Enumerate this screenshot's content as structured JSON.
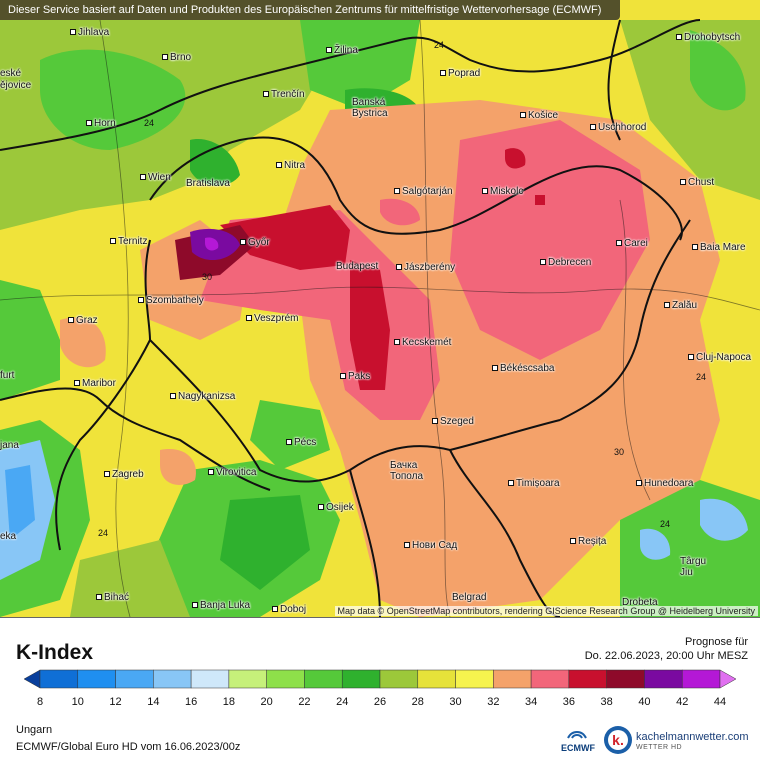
{
  "header": {
    "disclaimer": "Dieser Service basiert auf Daten und Produkten des Europäischen Zentrums für mittelfristige Wettervorhersage (ECMWF)"
  },
  "map": {
    "attribution": "Map data © OpenStreetMap contributors, rendering GIScience Research Group @ Heidelberg University",
    "cities": [
      "Jihlava",
      "Brno",
      "Žilina",
      "Poprad",
      "Drohobytsch",
      "Banská Bystrica",
      "Trenčín",
      "Horn",
      "Košice",
      "Uschhorod",
      "Nitra",
      "Wien",
      "Bratislava",
      "Salgótarján",
      "Miskolc",
      "Chust",
      "Ternitz",
      "Győr",
      "Budapest",
      "Jászberény",
      "Debrecen",
      "Carei",
      "Baia Mare",
      "Szombathely",
      "Graz",
      "Veszprém",
      "Kecskemét",
      "Zalău",
      "Maribor",
      "Paks",
      "Békéscsaba",
      "Cluj-Napoca",
      "Nagykanizsa",
      "Szeged",
      "Pécs",
      "Zagreb",
      "Virovitica",
      "Бачка Топола",
      "Timișoara",
      "Hunedoara",
      "Osijek",
      "Нови Сад",
      "Reșița",
      "Târgu Jiu",
      "Bihać",
      "Banja Luka",
      "Doboj",
      "Belgrad",
      "Drobeta",
      "Ljubljana",
      "Graz"
    ],
    "isoline_labels": [
      "24",
      "24",
      "24",
      "24",
      "24",
      "30",
      "30"
    ],
    "edge_labels": [
      "eské",
      "ějovice",
      "furt",
      "jana",
      "eka"
    ]
  },
  "title": "K-Index",
  "forecast": {
    "label": "Prognose für",
    "time": "Do. 22.06.2023, 20:00 Uhr MESZ"
  },
  "scale": {
    "ticks": [
      "8",
      "10",
      "12",
      "14",
      "16",
      "18",
      "20",
      "22",
      "24",
      "26",
      "28",
      "30",
      "32",
      "34",
      "36",
      "38",
      "40",
      "42",
      "44"
    ],
    "colors": [
      "#0a3f9c",
      "#0f6fd6",
      "#1f8ff0",
      "#4aa8f4",
      "#88c6f6",
      "#cfe8fa",
      "#c6f07a",
      "#8ee04a",
      "#55c93a",
      "#2fb12e",
      "#9cc83a",
      "#e6e23a",
      "#f6f34e",
      "#f4a26a",
      "#f2667a",
      "#c8102e",
      "#8e0a2a",
      "#7a0aa0",
      "#b418d6",
      "#e070f0"
    ]
  },
  "footer": {
    "region": "Ungarn",
    "model": "ECMWF/Global Euro HD vom  16.06.2023/00z",
    "ecmwf_logo_text": "ECMWF",
    "brand": "kachelmannwetter.com",
    "brand_sub": "WETTER HD",
    "brand_letter": "k."
  }
}
